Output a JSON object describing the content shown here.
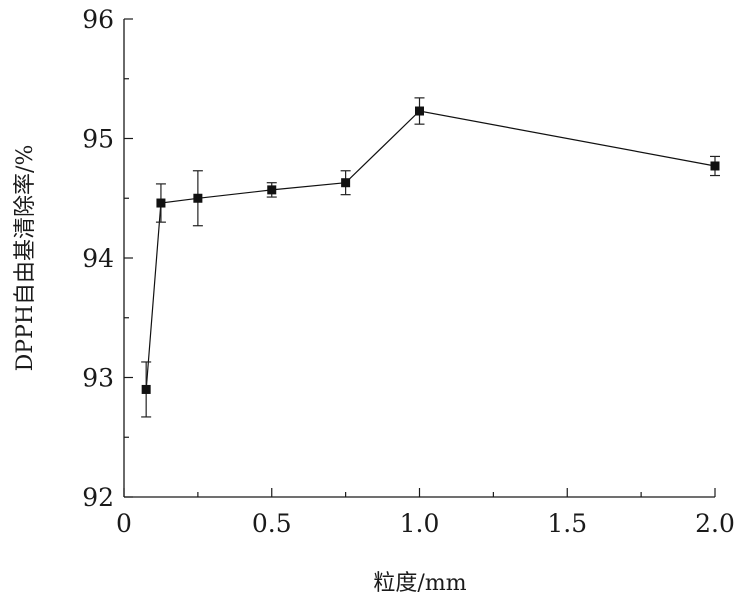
{
  "chart_data": {
    "type": "line",
    "title": "",
    "xlabel": "粒度/mm",
    "ylabel": "DPPH自由基清除率/%",
    "xlim": [
      0,
      2.0
    ],
    "ylim": [
      92,
      96
    ],
    "x_ticks": [
      0,
      0.5,
      1.0,
      1.5,
      2.0
    ],
    "x_tick_labels": [
      "0",
      "0.5",
      "1.0",
      "1.5",
      "2.0"
    ],
    "y_ticks": [
      92,
      93,
      94,
      95,
      96
    ],
    "y_tick_labels": [
      "92",
      "93",
      "94",
      "95",
      "96"
    ],
    "grid": false,
    "series": [
      {
        "marker": "square",
        "color": "#111111",
        "x": [
          0.075,
          0.125,
          0.25,
          0.5,
          0.75,
          1.0,
          2.0
        ],
        "y": [
          92.9,
          94.46,
          94.5,
          94.57,
          94.63,
          95.23,
          94.77
        ],
        "err": [
          0.23,
          0.16,
          0.23,
          0.06,
          0.1,
          0.11,
          0.08
        ]
      }
    ]
  }
}
